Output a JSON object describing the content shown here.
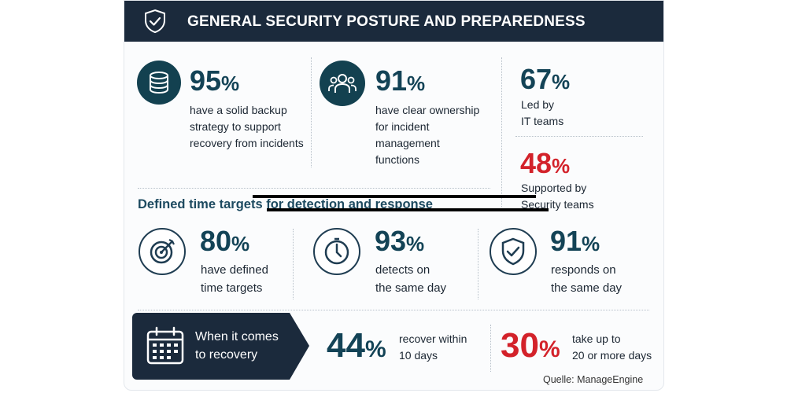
{
  "header": {
    "title": "GENERAL SECURITY POSTURE AND PREPAREDNESS",
    "icon": "shield-check-icon"
  },
  "stats_top": [
    {
      "value": "95",
      "unit": "%",
      "text_lines": [
        "have a solid backup",
        "strategy to support",
        "recovery from incidents"
      ],
      "icon": "database-icon"
    },
    {
      "value": "91",
      "unit": "%",
      "text_lines": [
        "have clear ownership",
        "for incident",
        "management",
        "functions"
      ],
      "icon": "team-icon"
    }
  ],
  "ownership": [
    {
      "value": "67",
      "unit": "%",
      "text_lines": [
        "Led by",
        "IT teams"
      ]
    },
    {
      "value": "48",
      "unit": "%",
      "text_lines": [
        "Supported by",
        "Security teams"
      ],
      "color": "#d3222a"
    }
  ],
  "section_title": "Defined time targets for detection and response",
  "stats_mid": [
    {
      "value": "80",
      "unit": "%",
      "text_lines": [
        "have defined",
        "time targets"
      ],
      "icon": "target-icon"
    },
    {
      "value": "93",
      "unit": "%",
      "text_lines": [
        "detects on",
        "the same day"
      ],
      "icon": "stopwatch-icon"
    },
    {
      "value": "91",
      "unit": "%",
      "text_lines": [
        "responds on",
        "the same day"
      ],
      "icon": "shield-check-icon"
    }
  ],
  "recovery": {
    "label_lines": [
      "When it comes",
      "to recovery"
    ],
    "icon": "calendar-icon",
    "items": [
      {
        "value": "44",
        "unit": "%",
        "text_lines": [
          "recover within",
          "10 days"
        ],
        "color": "#134356"
      },
      {
        "value": "30",
        "unit": "%",
        "text_lines": [
          "take up to",
          "20 or more days"
        ],
        "color": "#d3222a"
      }
    ]
  },
  "source": "Quelle: ManageEngine",
  "colors": {
    "navy": "#1b2a3c",
    "teal": "#134356",
    "red": "#d3222a"
  }
}
